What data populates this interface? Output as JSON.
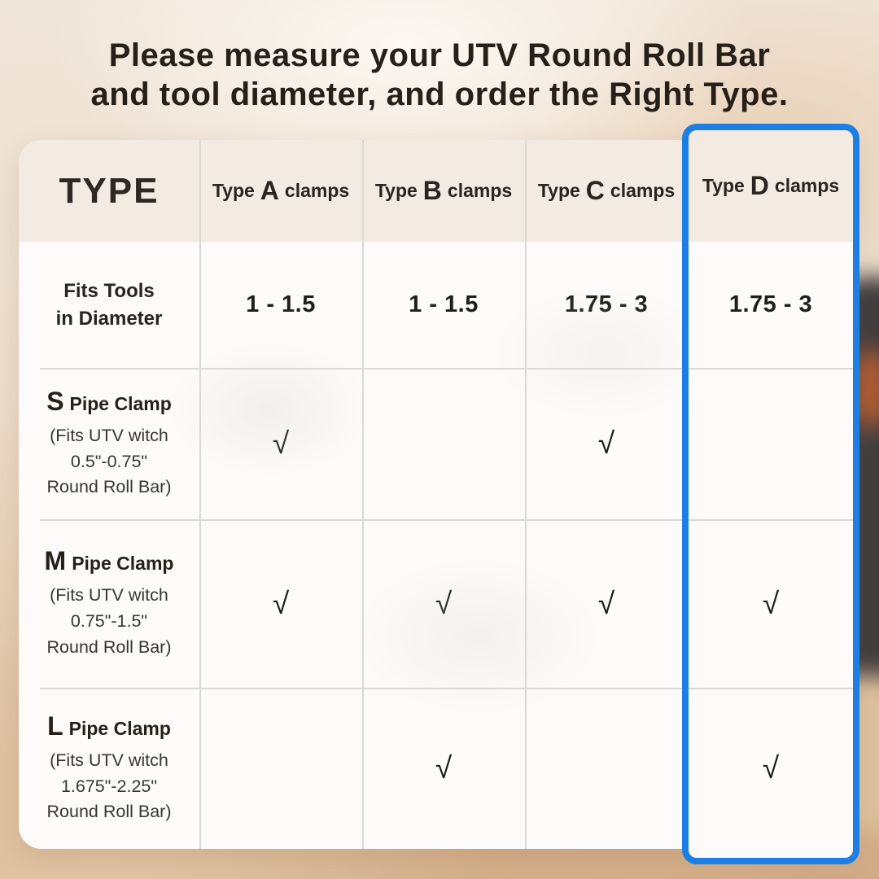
{
  "title": {
    "line1": "Please measure your UTV Round Roll Bar",
    "line2": "and tool diameter, and order the Right Type."
  },
  "table": {
    "corner_label": "TYPE",
    "columns": [
      {
        "prefix": "Type",
        "letter": "A",
        "suffix": "clamps"
      },
      {
        "prefix": "Type",
        "letter": "B",
        "suffix": "clamps"
      },
      {
        "prefix": "Type",
        "letter": "C",
        "suffix": "clamps"
      },
      {
        "prefix": "Type",
        "letter": "D",
        "suffix": "clamps",
        "highlighted": true
      }
    ],
    "rows": [
      {
        "label_line1": "Fits Tools",
        "label_line2": "in Diameter",
        "values": [
          "1 - 1.5",
          "1 - 1.5",
          "1.75 - 3",
          "1.75 - 3"
        ]
      },
      {
        "size_letter": "S",
        "label": "Pipe Clamp",
        "desc_line1": "(Fits UTV witch",
        "desc_line2": "0.5\"-0.75\"",
        "desc_line3": "Round Roll Bar)",
        "values": [
          "√",
          "",
          "√",
          ""
        ]
      },
      {
        "size_letter": "M",
        "label": "Pipe Clamp",
        "desc_line1": "(Fits UTV witch",
        "desc_line2": "0.75\"-1.5\"",
        "desc_line3": "Round Roll Bar)",
        "values": [
          "√",
          "√",
          "√",
          "√"
        ]
      },
      {
        "size_letter": "L",
        "label": "Pipe Clamp",
        "desc_line1": "(Fits UTV witch",
        "desc_line2": "1.675\"-2.25\"",
        "desc_line3": "Round Roll Bar)",
        "values": [
          "",
          "√",
          "",
          "√"
        ]
      }
    ]
  },
  "checkmark_glyph": "√",
  "colors": {
    "highlight_border": "#1d7fe3",
    "header_bg": "#f3eae2",
    "card_bg": "#fcfbfa",
    "grid_line": "#dcd8d4",
    "title_text": "#272019"
  }
}
